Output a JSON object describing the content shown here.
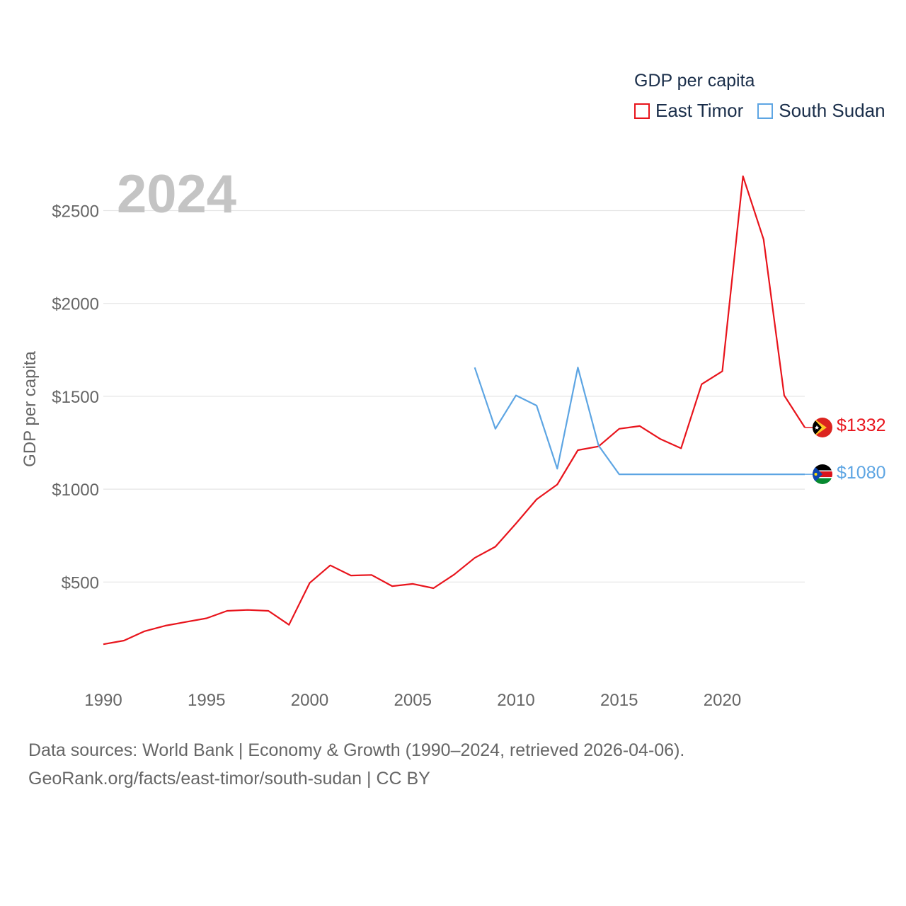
{
  "legend": {
    "title": "GDP per capita",
    "items": [
      {
        "label": "East Timor",
        "color": "#e8141c"
      },
      {
        "label": "South Sudan",
        "color": "#5da5e3"
      }
    ]
  },
  "year_label": "2024",
  "source": {
    "line1": "Data sources: World Bank | Economy & Growth (1990–2024, retrieved 2026-04-06).",
    "line2": "GeoRank.org/facts/east-timor/south-sudan | CC BY"
  },
  "chart_data": {
    "type": "line",
    "title": "GDP per capita",
    "xlabel": "",
    "ylabel": "GDP per capita",
    "xlim": [
      1990,
      2024
    ],
    "ylim": [
      0,
      2700
    ],
    "x_ticks": [
      1990,
      1995,
      2000,
      2005,
      2010,
      2015,
      2020
    ],
    "x_tick_labels": [
      "1990",
      "1995",
      "2000",
      "2005",
      "2010",
      "2015",
      "2020"
    ],
    "y_ticks": [
      500,
      1000,
      1500,
      2000,
      2500
    ],
    "y_tick_labels": [
      "$500",
      "$1000",
      "$1500",
      "$2000",
      "$2500"
    ],
    "grid": true,
    "legend_position": "top-right",
    "series": [
      {
        "name": "East Timor",
        "color": "#e8141c",
        "end_label": "$1332",
        "points": [
          [
            1990,
            165
          ],
          [
            1991,
            185
          ],
          [
            1992,
            235
          ],
          [
            1993,
            265
          ],
          [
            1994,
            285
          ],
          [
            1995,
            305
          ],
          [
            1996,
            345
          ],
          [
            1997,
            350
          ],
          [
            1998,
            345
          ],
          [
            1999,
            270
          ],
          [
            2000,
            495
          ],
          [
            2001,
            590
          ],
          [
            2002,
            535
          ],
          [
            2003,
            538
          ],
          [
            2004,
            478
          ],
          [
            2005,
            490
          ],
          [
            2006,
            467
          ],
          [
            2007,
            540
          ],
          [
            2008,
            630
          ],
          [
            2009,
            690
          ],
          [
            2010,
            815
          ],
          [
            2011,
            945
          ],
          [
            2012,
            1025
          ],
          [
            2013,
            1210
          ],
          [
            2014,
            1230
          ],
          [
            2015,
            1325
          ],
          [
            2016,
            1340
          ],
          [
            2017,
            1270
          ],
          [
            2018,
            1220
          ],
          [
            2019,
            1565
          ],
          [
            2020,
            1635
          ],
          [
            2021,
            2685
          ],
          [
            2022,
            2345
          ],
          [
            2023,
            1505
          ],
          [
            2024,
            1332
          ]
        ]
      },
      {
        "name": "South Sudan",
        "color": "#5da5e3",
        "end_label": "$1080",
        "points": [
          [
            2008,
            1655
          ],
          [
            2009,
            1325
          ],
          [
            2010,
            1505
          ],
          [
            2011,
            1450
          ],
          [
            2012,
            1110
          ],
          [
            2013,
            1655
          ],
          [
            2014,
            1235
          ],
          [
            2015,
            1080
          ],
          [
            2016,
            1080
          ],
          [
            2017,
            1080
          ],
          [
            2018,
            1080
          ],
          [
            2019,
            1080
          ],
          [
            2020,
            1080
          ],
          [
            2021,
            1080
          ],
          [
            2022,
            1080
          ],
          [
            2023,
            1080
          ],
          [
            2024,
            1080
          ]
        ]
      }
    ]
  }
}
